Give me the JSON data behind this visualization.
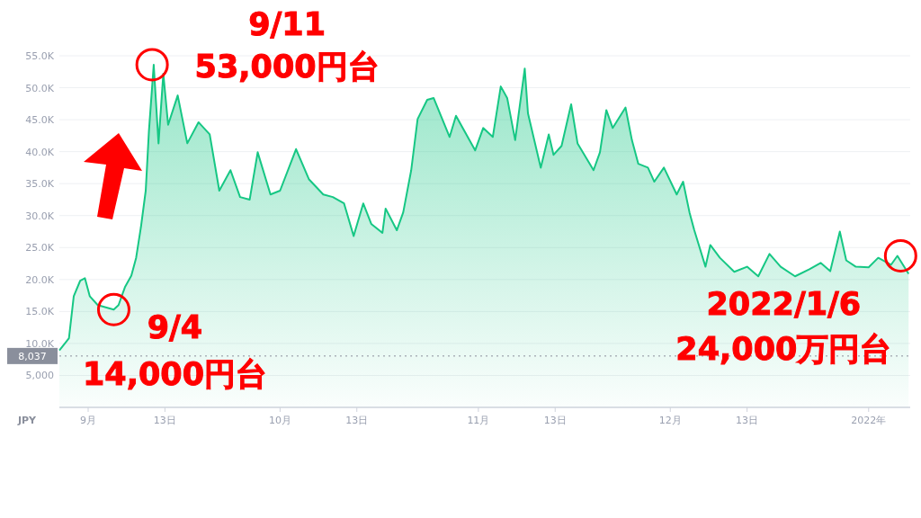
{
  "chart_data": {
    "type": "area",
    "ylabel": "JPY",
    "color": "#16c784",
    "grid": "y",
    "xlim": [
      "2021-08-27T12:00",
      "2022-01-07T12:00"
    ],
    "ylim": [
      0,
      55000
    ],
    "xticks": [
      {
        "value": "2021-09-01",
        "label": "9月"
      },
      {
        "value": "2021-09-13",
        "label": "13日"
      },
      {
        "value": "2021-10-01",
        "label": "10月"
      },
      {
        "value": "2021-10-13",
        "label": "13日"
      },
      {
        "value": "2021-11-01",
        "label": "11月"
      },
      {
        "value": "2021-11-13",
        "label": "13日"
      },
      {
        "value": "2021-12-01",
        "label": "12月"
      },
      {
        "value": "2021-12-13",
        "label": "13日"
      },
      {
        "value": "2022-01-01",
        "label": "2022年"
      }
    ],
    "yticks": [
      {
        "value": 5000,
        "label": "5,000"
      },
      {
        "value": 10000,
        "label": "10.0K"
      },
      {
        "value": 15000,
        "label": "15.0K"
      },
      {
        "value": 20000,
        "label": "20.0K"
      },
      {
        "value": 25000,
        "label": "25.0K"
      },
      {
        "value": 30000,
        "label": "30.0K"
      },
      {
        "value": 35000,
        "label": "35.0K"
      },
      {
        "value": 40000,
        "label": "40.0K"
      },
      {
        "value": 45000,
        "label": "45.0K"
      },
      {
        "value": 50000,
        "label": "50.0K"
      },
      {
        "value": 55000,
        "label": "55.0K"
      }
    ],
    "ref_lines": [
      {
        "axis": "y",
        "value": 8037,
        "label": "8,037",
        "color": "#8a8f9c",
        "line_style": "dotted"
      }
    ],
    "annotations": [
      {
        "text": "9/11 53,000円台",
        "x": "2021-09-11",
        "y": 53600
      },
      {
        "text": "9/4 14,000円台",
        "x": "2021-09-05",
        "y": 15300
      },
      {
        "text": "2022/1/6 24,000万円台",
        "x": "2022-01-06",
        "y": 23700
      }
    ],
    "x": [
      "2021-08-27T12:00",
      "2021-08-29T00:00",
      "2021-08-29T18:00",
      "2021-08-30T18:00",
      "2021-08-31T12:00",
      "2021-09-01T06:00",
      "2021-09-02T12:00",
      "2021-09-05T00:00",
      "2021-09-05T18:00",
      "2021-09-06T18:00",
      "2021-09-07T18:00",
      "2021-09-08T12:00",
      "2021-09-09T06:00",
      "2021-09-10T00:00",
      "2021-09-10T12:00",
      "2021-09-11T06:00",
      "2021-09-12T00:00",
      "2021-09-12T18:00",
      "2021-09-13T12:00",
      "2021-09-15T00:00",
      "2021-09-16T12:00",
      "2021-09-18T06:00",
      "2021-09-20T00:00",
      "2021-09-21T12:00",
      "2021-09-23T06:00",
      "2021-09-24T18:00",
      "2021-09-26T06:00",
      "2021-09-27T12:00",
      "2021-09-29T12:00",
      "2021-10-01T00:00",
      "2021-10-03T12:00",
      "2021-10-05T12:00",
      "2021-10-07T18:00",
      "2021-10-09T06:00",
      "2021-10-11T00:00",
      "2021-10-12T12:00",
      "2021-10-14T00:00",
      "2021-10-15T06:00",
      "2021-10-17T00:00",
      "2021-10-17T12:00",
      "2021-10-19T06:00",
      "2021-10-20T06:00",
      "2021-10-21T12:00",
      "2021-10-22T12:00",
      "2021-10-24T00:00",
      "2021-10-25T00:00",
      "2021-10-27T12:00",
      "2021-10-28T12:00",
      "2021-10-31T12:00",
      "2021-11-01T18:00",
      "2021-11-03T06:00",
      "2021-11-04T12:00",
      "2021-11-05T12:00",
      "2021-11-06T18:00",
      "2021-11-08T06:00",
      "2021-11-08T18:00",
      "2021-11-10T18:00",
      "2021-11-12T00:00",
      "2021-11-12T18:00",
      "2021-11-14T00:00",
      "2021-11-15T12:00",
      "2021-11-16T12:00",
      "2021-11-19T00:00",
      "2021-11-20T00:00",
      "2021-11-21T00:00",
      "2021-11-22T00:00",
      "2021-11-24T00:00",
      "2021-11-25T00:00",
      "2021-11-26T00:00",
      "2021-11-27T12:00",
      "2021-11-28T12:00",
      "2021-11-30T00:00",
      "2021-12-02T00:00",
      "2021-12-03T00:00",
      "2021-12-04T00:00",
      "2021-12-04T18:00",
      "2021-12-06T12:00",
      "2021-12-07T06:00",
      "2021-12-08T18:00",
      "2021-12-11T00:00",
      "2021-12-13T00:00",
      "2021-12-14T18:00",
      "2021-12-16T12:00",
      "2021-12-18T06:00",
      "2021-12-20T12:00",
      "2021-12-22T18:00",
      "2021-12-24T12:00",
      "2021-12-26T00:00",
      "2021-12-27T12:00",
      "2021-12-28T12:00",
      "2021-12-30T00:00",
      "2022-01-01T00:00",
      "2022-01-02T12:00",
      "2022-01-04T12:00",
      "2022-01-05T12:00",
      "2022-01-07T06:00"
    ],
    "values": [
      8900,
      10800,
      17400,
      19800,
      20200,
      17400,
      16000,
      15300,
      16000,
      18800,
      20600,
      23400,
      28200,
      33900,
      43200,
      53600,
      41300,
      52200,
      44200,
      48800,
      41300,
      44600,
      42700,
      33900,
      37100,
      32900,
      32500,
      39900,
      33300,
      33900,
      40400,
      35700,
      33300,
      32900,
      31900,
      26800,
      31900,
      28700,
      27300,
      31100,
      27700,
      30500,
      37100,
      45100,
      48100,
      48400,
      42300,
      45600,
      40200,
      43700,
      42300,
      50200,
      48400,
      41800,
      53000,
      46000,
      37500,
      42700,
      39500,
      40900,
      47400,
      41300,
      37100,
      39900,
      46500,
      43700,
      46900,
      41800,
      38100,
      37500,
      35300,
      37500,
      33300,
      35300,
      30500,
      27700,
      22000,
      25400,
      23400,
      21200,
      22000,
      20500,
      24000,
      22000,
      20500,
      21600,
      22600,
      21300,
      27500,
      23000,
      22000,
      21900,
      23400,
      22300,
      23700,
      20900
    ]
  }
}
